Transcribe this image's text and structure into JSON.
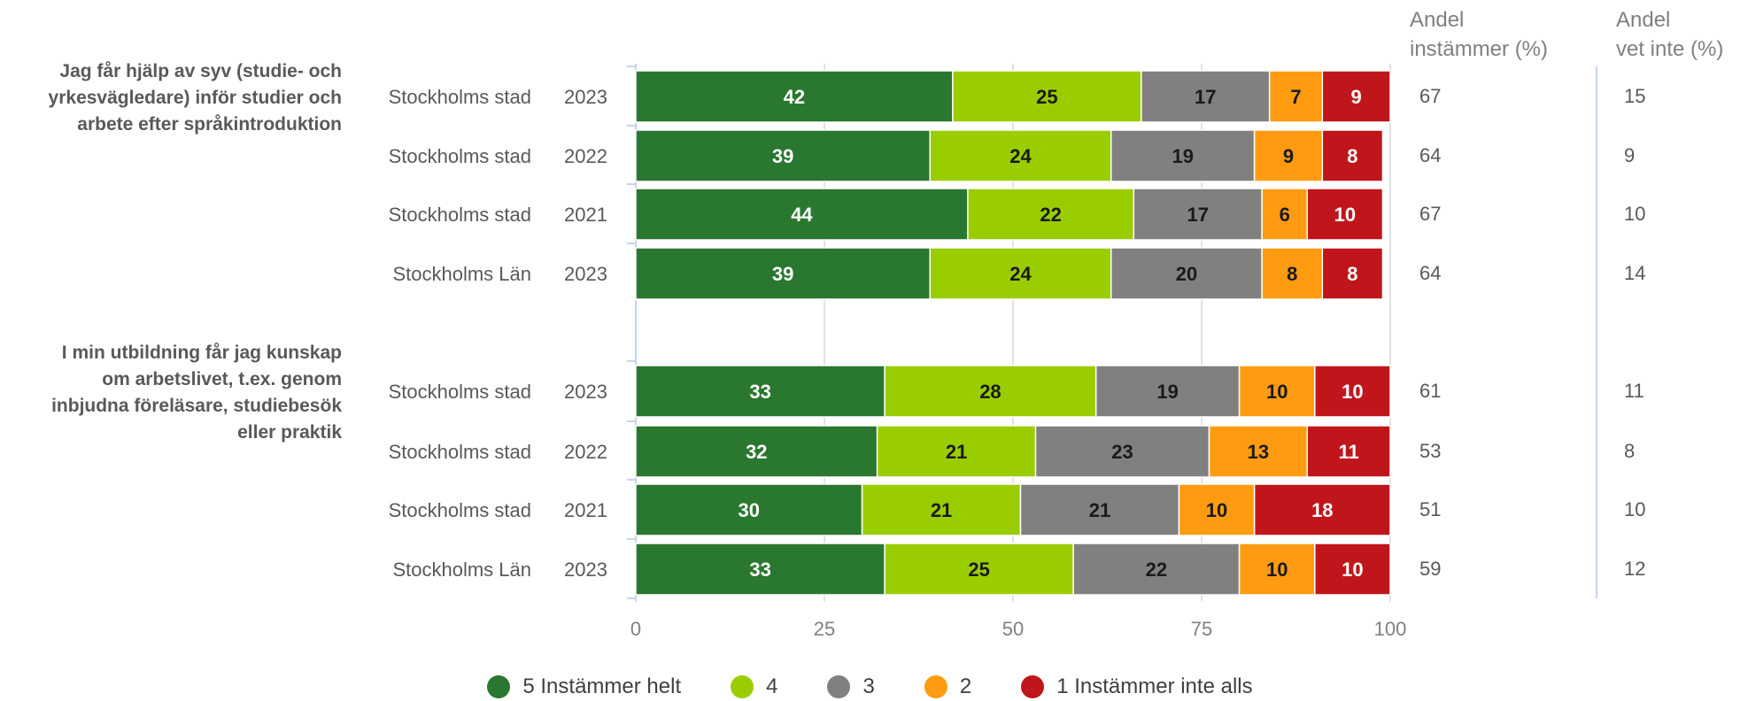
{
  "header": {
    "andel_instammer": [
      "Andel",
      "instämmer (%)"
    ],
    "andel_vet_inte": [
      "Andel",
      "vet inte (%)"
    ]
  },
  "chart_data": {
    "type": "bar",
    "orientation": "horizontal",
    "stacked": true,
    "xlim": [
      0,
      100
    ],
    "xticks": [
      0,
      25,
      50,
      75,
      100
    ],
    "grid": "vertical",
    "legend_position": "bottom",
    "series": [
      {
        "name": "5 Instämmer helt",
        "color": "#2a7730",
        "text_color": "#ffffff"
      },
      {
        "name": "4",
        "color": "#9acd00",
        "text_color": "#1a1a1a"
      },
      {
        "name": "3",
        "color": "#808080",
        "text_color": "#1a1a1a"
      },
      {
        "name": "2",
        "color": "#ff9b10",
        "text_color": "#1a1a1a"
      },
      {
        "name": "1 Instämmer inte alls",
        "color": "#c0161b",
        "text_color": "#ffffff"
      }
    ],
    "groups": [
      {
        "question": "Jag får hjälp av syv (studie- och yrkesvägledare) inför studier och arbete efter språkintroduktion",
        "question_lines": [
          "Jag får hjälp av syv (studie- och",
          "yrkesvägledare) inför studier och",
          "arbete efter språkintroduktion"
        ],
        "rows": [
          {
            "name": "Stockholms stad",
            "year": "2023",
            "values": [
              42,
              25,
              17,
              7,
              9
            ],
            "andel_instammer": 67,
            "andel_vet_inte": 15
          },
          {
            "name": "Stockholms stad",
            "year": "2022",
            "values": [
              39,
              24,
              19,
              9,
              8
            ],
            "andel_instammer": 64,
            "andel_vet_inte": 9
          },
          {
            "name": "Stockholms stad",
            "year": "2021",
            "values": [
              44,
              22,
              17,
              6,
              10
            ],
            "andel_instammer": 67,
            "andel_vet_inte": 10
          },
          {
            "name": "Stockholms Län",
            "year": "2023",
            "values": [
              39,
              24,
              20,
              8,
              8
            ],
            "andel_instammer": 64,
            "andel_vet_inte": 14
          }
        ]
      },
      {
        "question": "I min utbildning får jag kunskap om arbetslivet, t.ex. genom inbjudna föreläsare, studiebesök eller praktik",
        "question_lines": [
          "I min utbildning får jag kunskap",
          "om arbetslivet, t.ex. genom",
          "inbjudna föreläsare, studiebesök",
          "eller praktik"
        ],
        "rows": [
          {
            "name": "Stockholms stad",
            "year": "2023",
            "values": [
              33,
              28,
              19,
              10,
              10
            ],
            "andel_instammer": 61,
            "andel_vet_inte": 11
          },
          {
            "name": "Stockholms stad",
            "year": "2022",
            "values": [
              32,
              21,
              23,
              13,
              11
            ],
            "andel_instammer": 53,
            "andel_vet_inte": 8
          },
          {
            "name": "Stockholms stad",
            "year": "2021",
            "values": [
              30,
              21,
              21,
              10,
              18
            ],
            "andel_instammer": 51,
            "andel_vet_inte": 10
          },
          {
            "name": "Stockholms Län",
            "year": "2023",
            "values": [
              33,
              25,
              22,
              10,
              10
            ],
            "andel_instammer": 59,
            "andel_vet_inte": 12
          }
        ]
      }
    ]
  }
}
